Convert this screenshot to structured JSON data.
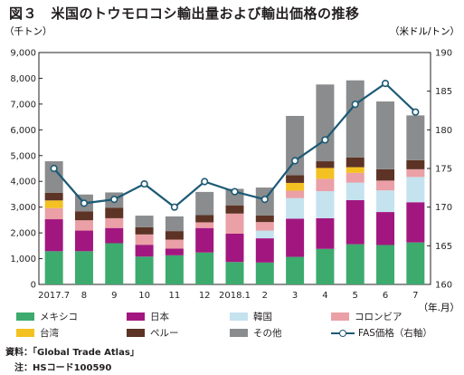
{
  "title": "図３　米国のトウモロコシ輸出量および輸出価格の推移",
  "source": "資料：「Global Trade Atlas」",
  "note": "　注：HSコード100590",
  "chart_data": {
    "type": "bar",
    "categories": [
      "2017.7",
      "8",
      "9",
      "10",
      "11",
      "12",
      "2018.1",
      "2",
      "3",
      "4",
      "5",
      "6",
      "7"
    ],
    "x_unit": "（年.月）",
    "y_left_unit": "（千トン）",
    "y_right_unit": "（米ドル/トン）",
    "ylim": [
      0,
      9000
    ],
    "yticks": [
      0,
      1000,
      2000,
      3000,
      4000,
      5000,
      6000,
      7000,
      8000,
      9000
    ],
    "ylim_right": [
      160,
      190
    ],
    "yticks_right": [
      160,
      165,
      170,
      175,
      180,
      185,
      190
    ],
    "grid": false,
    "legend_position": "bottom",
    "series": [
      {
        "name": "メキシコ",
        "color": "#3daa6e",
        "values": [
          1290,
          1290,
          1600,
          1080,
          1130,
          1240,
          870,
          850,
          1070,
          1380,
          1560,
          1530,
          1630
        ]
      },
      {
        "name": "日本",
        "color": "#a2177f",
        "values": [
          1240,
          800,
          590,
          460,
          260,
          950,
          1100,
          940,
          1480,
          1190,
          1710,
          1280,
          1560
        ]
      },
      {
        "name": "韓国",
        "color": "#c5e2ef",
        "values": [
          0,
          0,
          0,
          0,
          0,
          0,
          0,
          300,
          800,
          1050,
          680,
          840,
          980
        ]
      },
      {
        "name": "コロンビア",
        "color": "#eaa0a6",
        "values": [
          430,
          400,
          380,
          400,
          350,
          220,
          780,
          330,
          290,
          480,
          380,
          380,
          300
        ]
      },
      {
        "name": "台湾",
        "color": "#f4c122",
        "values": [
          300,
          0,
          0,
          0,
          0,
          0,
          0,
          0,
          300,
          420,
          220,
          0,
          0
        ]
      },
      {
        "name": "ペルー",
        "color": "#5c3325",
        "values": [
          300,
          350,
          410,
          280,
          330,
          280,
          320,
          260,
          300,
          260,
          380,
          440,
          350
        ]
      },
      {
        "name": "その他",
        "color": "#8a8c8e",
        "values": [
          1220,
          650,
          590,
          450,
          570,
          900,
          640,
          1080,
          2300,
          2980,
          2990,
          2630,
          1740
        ]
      }
    ],
    "line_series": {
      "name": "FAS価格（右軸）",
      "color": "#1c5a75",
      "axis": "right",
      "values": [
        175.0,
        170.5,
        171.0,
        173.0,
        170.0,
        173.3,
        172.0,
        171.0,
        176.0,
        178.7,
        183.3,
        186.0,
        182.3
      ]
    }
  }
}
